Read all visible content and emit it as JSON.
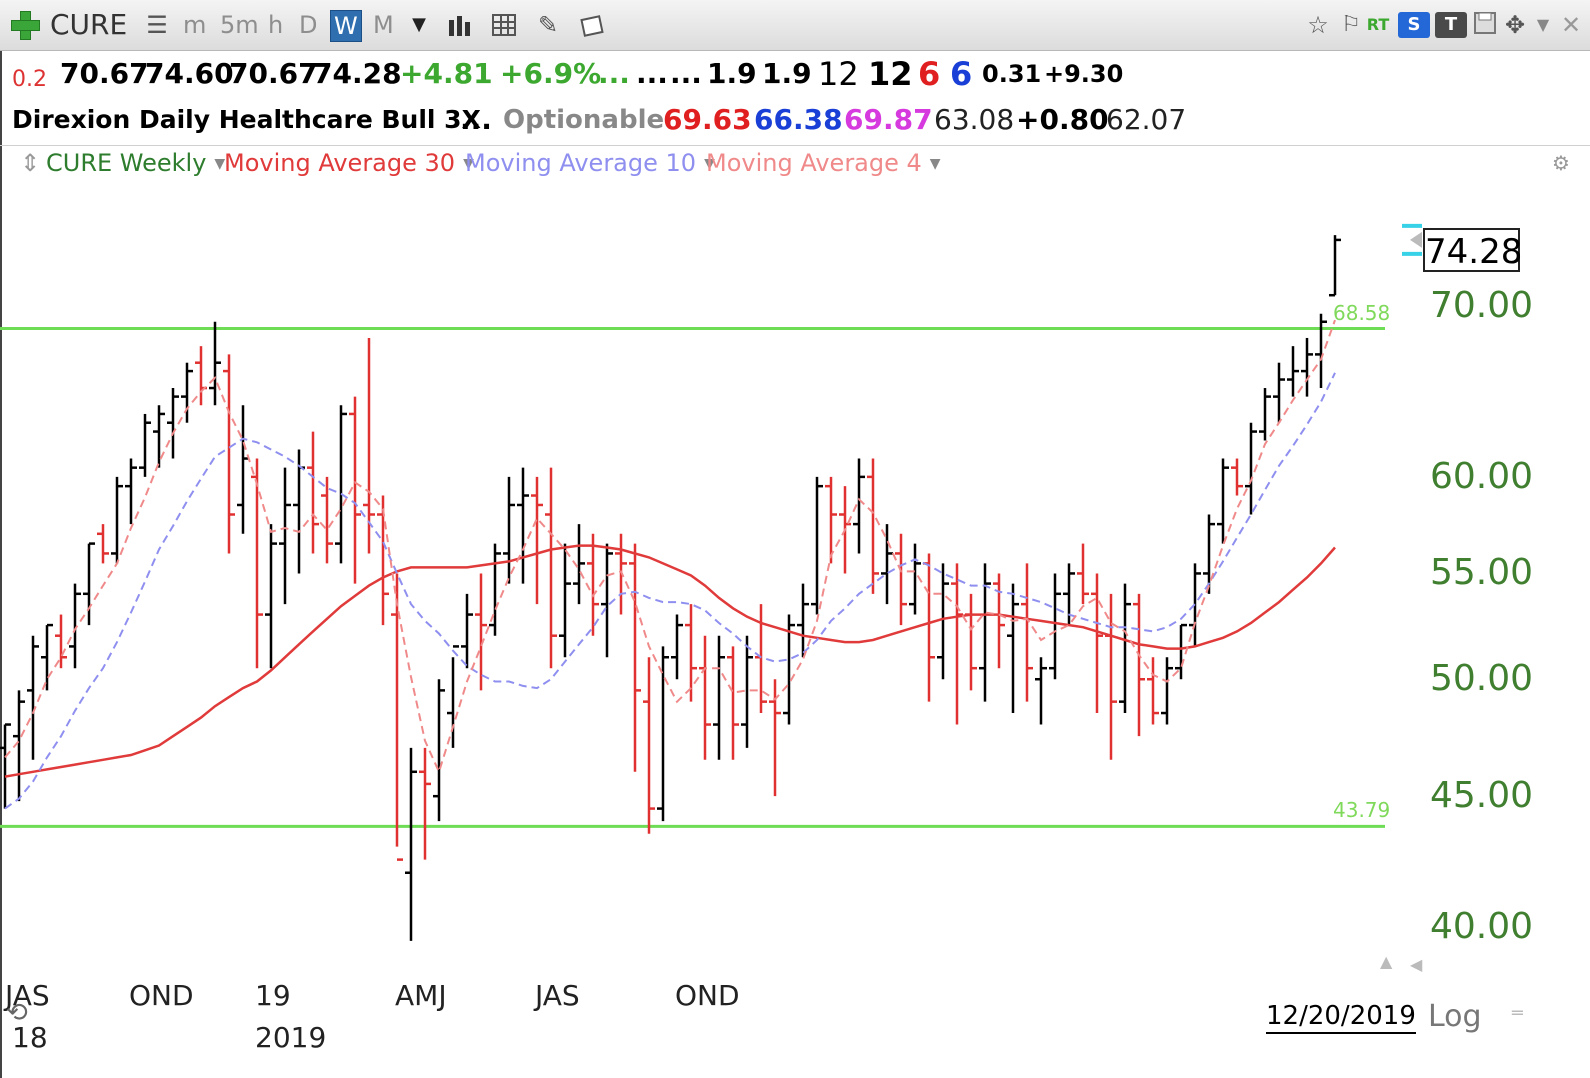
{
  "toolbar": {
    "symbol": "CURE",
    "periods": [
      "m",
      "5m",
      "h",
      "D",
      "W",
      "M"
    ],
    "active_period": "W",
    "icons": [
      "add-icon",
      "list-icon",
      "chart-type-icon",
      "grid-icon",
      "pencil-icon",
      "layout-icon",
      "star-icon",
      "flag-icon",
      "rt-icon",
      "s-icon",
      "ty-icon",
      "save-icon",
      "move-icon",
      "close-icon"
    ],
    "rt_label": "RT",
    "s_label": "S",
    "ty_label": "T"
  },
  "quote": {
    "row1": [
      {
        "text": "0.2",
        "color": "#d33"
      },
      {
        "text": "70.67",
        "color": "#000"
      },
      {
        "text": "74.60",
        "color": "#000"
      },
      {
        "text": "70.67",
        "color": "#000"
      },
      {
        "text": "74.28",
        "color": "#000"
      },
      {
        "text": "+4.81",
        "color": "#3ca82f"
      },
      {
        "text": "+6.9%",
        "color": "#3ca82f"
      },
      {
        "text": "...",
        "color": "#3ca82f"
      },
      {
        "text": "...",
        "color": "#000"
      },
      {
        "text": "...",
        "color": "#000"
      },
      {
        "text": "1.9",
        "color": "#000"
      },
      {
        "text": "1.9",
        "color": "#000"
      },
      {
        "text": "12",
        "color": "#000"
      },
      {
        "text": "12",
        "color": "#000"
      },
      {
        "text": "6",
        "color": "#e02020"
      },
      {
        "text": "6",
        "color": "#1a3fd6"
      },
      {
        "text": "0.31",
        "color": "#000"
      },
      {
        "text": "+9.30",
        "color": "#000"
      }
    ],
    "row2": [
      {
        "text": "Direxion Daily Healthcare Bull 3X",
        "color": "#000"
      },
      {
        "text": "...",
        "color": "#000"
      },
      {
        "text": "Optionable",
        "color": "#888"
      },
      {
        "text": "69.63",
        "color": "#e02020"
      },
      {
        "text": "66.38",
        "color": "#1a3fd6"
      },
      {
        "text": "69.87",
        "color": "#d63adf"
      },
      {
        "text": "63.08",
        "color": "#222"
      },
      {
        "text": "+0.80",
        "color": "#000"
      },
      {
        "text": "62.07",
        "color": "#222"
      }
    ]
  },
  "legend": {
    "main": "CURE Weekly",
    "ma30": "Moving Average 30",
    "ma10": "Moving Average 10",
    "ma4": "Moving Average 4"
  },
  "colors": {
    "up_bar": "#000000",
    "down_bar": "#e03030",
    "ma30": "#e03a3a",
    "ma10": "#8f8ff0",
    "ma4": "#f08a8a",
    "hline": "#6fdc55",
    "price_marker": "#38d2e8",
    "axis_text": "#3f7f2f"
  },
  "chart_data": {
    "type": "ohlc",
    "scale": "log",
    "ylim": [
      39.0,
      77.0
    ],
    "yticks": [
      40.0,
      45.0,
      50.0,
      55.0,
      60.0,
      70.0
    ],
    "ytick_labels": [
      "40.00",
      "45.00",
      "50.00",
      "55.00",
      "60.00",
      "70.00"
    ],
    "x_labels": [
      {
        "text": "JAS",
        "index": 0
      },
      {
        "text": "OND",
        "index": 11
      },
      {
        "text": "19",
        "index": 20
      },
      {
        "text": "AMJ",
        "index": 30
      },
      {
        "text": "JAS",
        "index": 40
      },
      {
        "text": "OND",
        "index": 50
      }
    ],
    "x_sub_labels": [
      {
        "text": "18",
        "index": 0
      },
      {
        "text": "2019",
        "index": 20
      }
    ],
    "last_price": "74.28",
    "hlines": [
      {
        "value": 68.58,
        "label": "68.58"
      },
      {
        "value": 43.79,
        "label": "43.79"
      }
    ],
    "date_label": "12/20/2019",
    "scale_button": "Log",
    "bars": [
      [
        47.0,
        48.0,
        44.5,
        48.0
      ],
      [
        47.5,
        49.5,
        44.8,
        49.0
      ],
      [
        49.5,
        52.0,
        46.5,
        51.5
      ],
      [
        51.0,
        52.5,
        49.5,
        52.5
      ],
      [
        52.0,
        53.0,
        50.5,
        51.0
      ],
      [
        51.5,
        54.5,
        50.5,
        54.0
      ],
      [
        54.0,
        56.5,
        52.5,
        56.5
      ],
      [
        57.0,
        57.5,
        55.5,
        56.0
      ],
      [
        56.0,
        60.0,
        55.5,
        59.5
      ],
      [
        59.5,
        61.0,
        57.5,
        60.5
      ],
      [
        60.5,
        63.5,
        60.0,
        63.0
      ],
      [
        62.5,
        64.0,
        60.5,
        63.5
      ],
      [
        63.0,
        65.0,
        61.0,
        64.5
      ],
      [
        64.5,
        66.5,
        63.0,
        66.0
      ],
      [
        66.5,
        67.5,
        64.0,
        65.0
      ],
      [
        65.0,
        69.0,
        64.0,
        66.5
      ],
      [
        66.0,
        67.0,
        56.0,
        58.0
      ],
      [
        58.5,
        64.0,
        57.0,
        61.0
      ],
      [
        60.0,
        61.0,
        50.5,
        53.0
      ],
      [
        53.0,
        57.5,
        50.5,
        56.5
      ],
      [
        56.5,
        60.5,
        53.5,
        58.5
      ],
      [
        58.5,
        61.5,
        55.0,
        60.5
      ],
      [
        60.5,
        62.5,
        56.0,
        57.5
      ],
      [
        59.0,
        60.0,
        55.5,
        56.5
      ],
      [
        56.5,
        64.0,
        55.5,
        63.5
      ],
      [
        63.5,
        64.5,
        54.5,
        58.0
      ],
      [
        58.5,
        68.0,
        56.0,
        58.0
      ],
      [
        58.0,
        59.0,
        52.5,
        54.0
      ],
      [
        53.0,
        55.0,
        43.0,
        42.5
      ],
      [
        42.0,
        47.0,
        39.5,
        46.0
      ],
      [
        46.0,
        47.0,
        42.5,
        45.5
      ],
      [
        45.0,
        50.0,
        44.0,
        49.5
      ],
      [
        48.5,
        51.0,
        47.0,
        51.5
      ],
      [
        51.5,
        54.0,
        50.5,
        53.0
      ],
      [
        53.0,
        55.0,
        49.5,
        52.5
      ],
      [
        52.5,
        56.5,
        52.0,
        56.0
      ],
      [
        56.0,
        60.0,
        54.5,
        58.5
      ],
      [
        58.5,
        60.5,
        54.5,
        59.0
      ],
      [
        59.0,
        60.0,
        53.5,
        58.5
      ],
      [
        58.0,
        60.5,
        50.5,
        52.0
      ],
      [
        52.0,
        56.5,
        51.0,
        54.5
      ],
      [
        54.5,
        57.5,
        53.5,
        55.5
      ],
      [
        55.5,
        57.0,
        52.0,
        53.5
      ],
      [
        53.5,
        56.5,
        51.0,
        56.0
      ],
      [
        56.0,
        57.0,
        53.0,
        55.5
      ],
      [
        55.5,
        56.5,
        46.0,
        49.5
      ],
      [
        49.0,
        51.0,
        43.5,
        44.5
      ],
      [
        44.5,
        51.5,
        44.0,
        51.0
      ],
      [
        51.0,
        53.0,
        50.0,
        52.5
      ],
      [
        52.5,
        53.5,
        49.0,
        50.5
      ],
      [
        50.5,
        52.0,
        46.5,
        48.0
      ],
      [
        48.0,
        52.0,
        46.5,
        51.0
      ],
      [
        51.0,
        51.5,
        46.5,
        48.0
      ],
      [
        48.0,
        52.0,
        47.0,
        51.0
      ],
      [
        51.0,
        53.5,
        48.5,
        49.0
      ],
      [
        49.0,
        50.0,
        45.0,
        48.5
      ],
      [
        48.5,
        53.0,
        48.0,
        52.5
      ],
      [
        52.5,
        54.5,
        51.0,
        53.5
      ],
      [
        53.5,
        60.0,
        53.0,
        59.5
      ],
      [
        59.5,
        60.0,
        55.5,
        58.0
      ],
      [
        58.0,
        59.5,
        55.0,
        57.5
      ],
      [
        57.5,
        61.0,
        56.0,
        60.0
      ],
      [
        60.0,
        61.0,
        54.0,
        55.0
      ],
      [
        55.0,
        57.5,
        53.5,
        56.0
      ],
      [
        56.0,
        57.0,
        52.5,
        53.5
      ],
      [
        53.5,
        56.5,
        53.0,
        55.5
      ],
      [
        55.5,
        56.0,
        49.0,
        51.0
      ],
      [
        51.0,
        55.5,
        50.0,
        54.5
      ],
      [
        54.5,
        55.5,
        48.0,
        53.0
      ],
      [
        53.0,
        54.0,
        49.5,
        50.5
      ],
      [
        50.5,
        55.5,
        49.0,
        54.5
      ],
      [
        54.5,
        55.0,
        50.5,
        52.5
      ],
      [
        52.0,
        54.5,
        48.5,
        53.5
      ],
      [
        53.5,
        55.5,
        49.0,
        50.5
      ],
      [
        50.0,
        51.0,
        48.0,
        50.5
      ],
      [
        50.5,
        55.0,
        50.0,
        54.0
      ],
      [
        54.0,
        55.5,
        52.5,
        55.0
      ],
      [
        55.0,
        56.5,
        53.5,
        54.0
      ],
      [
        54.0,
        55.0,
        48.5,
        52.0
      ],
      [
        52.0,
        54.0,
        46.5,
        49.0
      ],
      [
        49.0,
        54.5,
        48.5,
        53.5
      ],
      [
        53.5,
        54.0,
        47.5,
        50.0
      ],
      [
        50.0,
        51.0,
        48.0,
        48.5
      ],
      [
        48.5,
        51.0,
        48.0,
        50.5
      ],
      [
        50.5,
        52.5,
        50.0,
        52.5
      ],
      [
        52.5,
        55.5,
        51.5,
        55.0
      ],
      [
        55.0,
        58.0,
        54.0,
        57.5
      ],
      [
        57.5,
        61.0,
        56.5,
        60.5
      ],
      [
        60.5,
        61.0,
        59.0,
        59.5
      ],
      [
        59.5,
        63.0,
        58.0,
        62.5
      ],
      [
        62.5,
        65.0,
        62.0,
        64.5
      ],
      [
        64.5,
        66.5,
        63.0,
        65.5
      ],
      [
        65.5,
        67.5,
        64.5,
        66.0
      ],
      [
        66.0,
        68.0,
        64.5,
        67.0
      ],
      [
        67.0,
        69.5,
        65.0,
        69.0
      ],
      [
        70.67,
        74.6,
        70.67,
        74.28
      ]
    ],
    "ma4": [
      46.6,
      47.3,
      48.5,
      50.0,
      51.0,
      52.3,
      53.3,
      54.4,
      55.5,
      57.3,
      58.9,
      60.8,
      62.4,
      63.8,
      64.8,
      65.6,
      63.6,
      62.0,
      59.6,
      57.1,
      57.3,
      57.1,
      58.0,
      57.2,
      58.3,
      59.7,
      59.2,
      58.3,
      53.5,
      50.1,
      47.3,
      46.0,
      47.9,
      49.9,
      51.5,
      53.2,
      54.8,
      56.2,
      57.8,
      57.0,
      56.2,
      55.2,
      53.9,
      54.9,
      55.1,
      53.6,
      51.5,
      50.2,
      49.0,
      49.6,
      50.5,
      50.5,
      49.4,
      49.5,
      49.5,
      49.1,
      49.8,
      50.9,
      52.7,
      55.9,
      57.2,
      58.8,
      58.1,
      56.7,
      55.1,
      55.1,
      54.0,
      54.0,
      53.4,
      52.3,
      53.1,
      53.0,
      52.7,
      52.8,
      51.8,
      52.2,
      52.5,
      53.4,
      53.8,
      52.6,
      52.2,
      51.1,
      50.2,
      49.9,
      50.5,
      52.6,
      54.4,
      56.4,
      58.3,
      59.8,
      61.8,
      63.0,
      64.3,
      65.5,
      66.7,
      69.1
    ],
    "ma10": [
      44.5,
      44.9,
      45.6,
      46.6,
      47.5,
      48.6,
      49.6,
      50.5,
      51.7,
      53.1,
      54.6,
      56.2,
      57.4,
      58.7,
      59.9,
      61.1,
      61.6,
      62.1,
      61.9,
      61.5,
      61.1,
      60.6,
      60.0,
      59.4,
      59.1,
      58.6,
      57.6,
      56.6,
      55.0,
      53.5,
      52.7,
      52.1,
      51.3,
      50.6,
      50.2,
      49.9,
      49.9,
      49.7,
      49.6,
      50.0,
      50.8,
      51.6,
      52.4,
      53.4,
      54.0,
      54.1,
      53.8,
      53.6,
      53.6,
      53.5,
      53.2,
      52.6,
      52.1,
      51.5,
      51.0,
      50.8,
      50.9,
      51.2,
      51.8,
      52.7,
      53.3,
      54.0,
      54.5,
      55.0,
      55.4,
      55.7,
      55.4,
      55.0,
      54.7,
      54.4,
      54.4,
      54.1,
      54.0,
      53.8,
      53.6,
      53.3,
      53.0,
      52.8,
      52.6,
      52.4,
      52.4,
      52.3,
      52.2,
      52.4,
      52.8,
      53.5,
      54.5,
      55.6,
      56.8,
      58.0,
      59.3,
      60.6,
      61.7,
      62.9,
      64.2,
      65.9
    ],
    "ma30": [
      45.8,
      45.9,
      46.0,
      46.1,
      46.2,
      46.3,
      46.4,
      46.5,
      46.6,
      46.7,
      46.9,
      47.1,
      47.5,
      47.9,
      48.3,
      48.8,
      49.2,
      49.6,
      49.9,
      50.4,
      51.0,
      51.6,
      52.2,
      52.8,
      53.4,
      53.9,
      54.4,
      54.8,
      55.1,
      55.3,
      55.3,
      55.3,
      55.3,
      55.3,
      55.4,
      55.5,
      55.6,
      55.8,
      56.0,
      56.2,
      56.3,
      56.4,
      56.4,
      56.3,
      56.2,
      56.0,
      55.8,
      55.5,
      55.2,
      54.9,
      54.4,
      53.8,
      53.3,
      52.9,
      52.6,
      52.4,
      52.2,
      52.0,
      51.9,
      51.8,
      51.7,
      51.7,
      51.8,
      52.0,
      52.2,
      52.4,
      52.6,
      52.8,
      52.9,
      53.0,
      53.0,
      53.0,
      52.9,
      52.8,
      52.7,
      52.6,
      52.5,
      52.4,
      52.2,
      52.0,
      51.8,
      51.6,
      51.5,
      51.4,
      51.4,
      51.5,
      51.7,
      51.9,
      52.2,
      52.6,
      53.1,
      53.6,
      54.2,
      54.8,
      55.5,
      56.3
    ]
  }
}
